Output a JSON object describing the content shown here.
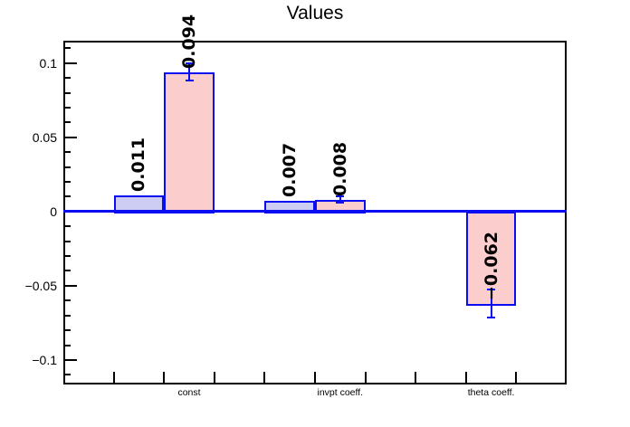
{
  "chart_data": {
    "type": "bar",
    "title": "Values",
    "categories": [
      "const",
      "invpt coeff.",
      "theta coeff."
    ],
    "series": [
      {
        "name": "blue-bars",
        "fill_color": "#cdcdf4",
        "values": [
          0.011,
          0.007,
          null
        ]
      },
      {
        "name": "pink-bars",
        "fill_color": "#fccdcd",
        "values": [
          0.094,
          0.008,
          -0.062
        ],
        "errors": [
          0.0055,
          0.002,
          0.0096
        ]
      }
    ],
    "n_bins": 10,
    "bars": [
      {
        "bin": 1,
        "series": 0,
        "value": 0.011,
        "label": "0.011"
      },
      {
        "bin": 2,
        "series": 1,
        "value": 0.094,
        "label": "0.094",
        "error": 0.0055
      },
      {
        "bin": 4,
        "series": 0,
        "value": 0.007,
        "label": "0.007"
      },
      {
        "bin": 5,
        "series": 1,
        "value": 0.008,
        "label": "0.008",
        "error": 0.002
      },
      {
        "bin": 8,
        "series": 1,
        "value": -0.062,
        "label": "−0.062",
        "error": 0.0096
      }
    ],
    "x_axis": {
      "labels": [
        {
          "text": "const",
          "bin": 2
        },
        {
          "text": "invpt coeff.",
          "bin": 5
        },
        {
          "text": "theta coeff.",
          "bin": 8
        }
      ]
    },
    "y_axis": {
      "min": -0.1165,
      "max": 0.115,
      "major_ticks": [
        {
          "value": 0.1,
          "label": "0.1"
        },
        {
          "value": 0.05,
          "label": "0.05"
        },
        {
          "value": 0,
          "label": "0"
        },
        {
          "value": -0.05,
          "label": "−0.05"
        },
        {
          "value": -0.1,
          "label": "−0.1"
        }
      ],
      "minor_step": 0.01
    },
    "grid": false,
    "legend": "none",
    "colors": {
      "frame": "#000000",
      "zero_line": "#0a0df2",
      "bar_border": "#0a0df2",
      "error_bar": "#0a0df2",
      "text": "#000000"
    }
  }
}
